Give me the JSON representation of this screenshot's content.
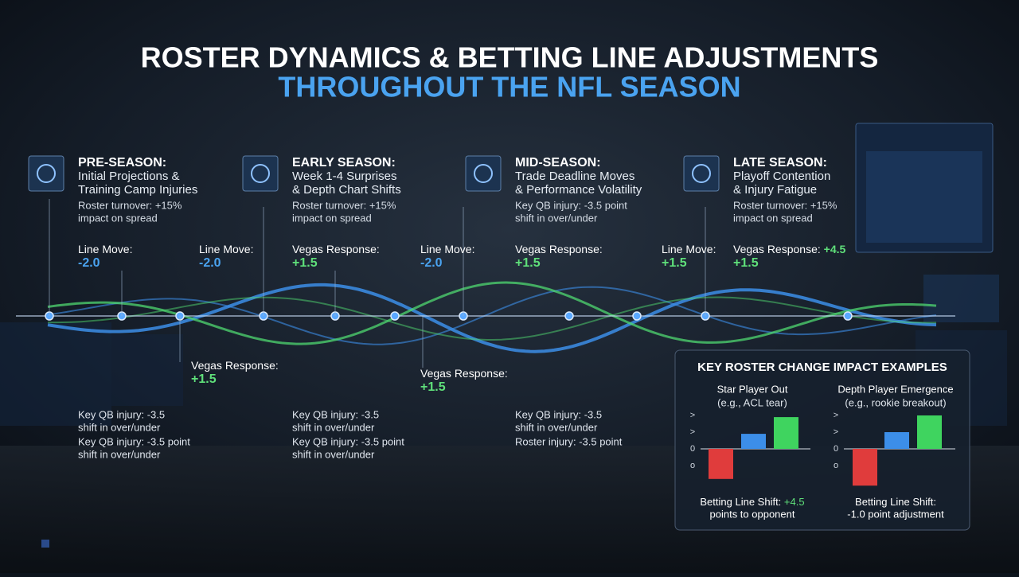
{
  "header": {
    "title": "ROSTER DYNAMICS & BETTING LINE ADJUSTMENTS",
    "subtitle": "THROUGHOUT THE NFL SEASON"
  },
  "phases": [
    {
      "title": "PRE-SEASON:",
      "lines": [
        "Initial Projections &",
        "Training Camp Injuries"
      ],
      "note": [
        "Roster turnover: +15%",
        "impact on spread"
      ]
    },
    {
      "title": "EARLY SEASON:",
      "lines": [
        "Week 1-4 Surprises",
        "& Depth Chart Shifts"
      ],
      "note": [
        "Roster turnover: +15%",
        "impact on spread"
      ]
    },
    {
      "title": "MID-SEASON:",
      "lines": [
        "Trade Deadline Moves",
        "& Performance Volatility"
      ],
      "note": [
        "Key QB injury: -3.5 point",
        "shift in over/under"
      ]
    },
    {
      "title": "LATE SEASON:",
      "lines": [
        "Playoff Contention",
        "& Injury Fatigue"
      ],
      "note": [
        "Roster turnover: +15%",
        "impact on spread"
      ]
    }
  ],
  "annotations": [
    {
      "label": "Line Move:",
      "value": "-2.0",
      "color": "#4aa3f0"
    },
    {
      "label": "Line Move:",
      "value": "-2.0",
      "color": "#4aa3f0"
    },
    {
      "label": "Vegas Response:",
      "value": "+1.5",
      "color": "#5fe07a"
    },
    {
      "label": "Line Move:",
      "value": "-2.0",
      "color": "#4aa3f0"
    },
    {
      "label": "Vegas Response:",
      "value": "+1.5",
      "color": "#5fe07a"
    },
    {
      "label": "Line Move:",
      "value": "+1.5",
      "color": "#5fe07a"
    },
    {
      "label": "Vegas Response:",
      "extra": "+4.5",
      "value": "+1.5",
      "color": "#5fe07a"
    },
    {
      "label": "Vegas Response:",
      "value": "+1.5",
      "color": "#5fe07a"
    },
    {
      "label": "Vegas Response:",
      "value": "+1.5",
      "color": "#5fe07a"
    }
  ],
  "notes": [
    [
      "Key QB injury: -3.5",
      "shift in over/under",
      "Key QB injury: -3.5 point",
      "shift in over/under"
    ],
    [
      "Key QB injury: -3.5",
      "shift in over/under",
      "Key QB injury: -3.5 point",
      "shift in over/under"
    ],
    [
      "Key QB injury: -3.5",
      "shift in over/under",
      "Roster injury: -3.5 point"
    ]
  ],
  "panel_title": "KEY ROSTER CHANGE IMPACT EXAMPLES",
  "chart_data": [
    {
      "type": "bar",
      "title": "Star Player Out",
      "subtitle": "(e.g., ACL tear)",
      "values": [
        -1.8,
        0.9,
        1.9
      ],
      "colors": [
        "#e03c3c",
        "#3c8ee8",
        "#3fd45f"
      ],
      "ylim": [
        -2.5,
        2.5
      ],
      "yticks": [
        {
          "value": 2,
          "label": ">"
        },
        {
          "value": 1,
          "label": ">"
        },
        0,
        {
          "value": -1,
          "label": "o"
        }
      ],
      "footer": [
        "Betting Line Shift:",
        "points to opponent"
      ],
      "footer_highlight": "+4.5"
    },
    {
      "type": "bar",
      "title": "Depth Player Emergence",
      "subtitle": "(e.g., rookie breakout)",
      "values": [
        -2.2,
        1.0,
        2.0
      ],
      "colors": [
        "#e03c3c",
        "#3c8ee8",
        "#3fd45f"
      ],
      "ylim": [
        -2.5,
        2.5
      ],
      "yticks": [
        {
          "value": 2,
          "label": ">"
        },
        {
          "value": 1,
          "label": ">"
        },
        0,
        {
          "value": -1,
          "label": "o"
        }
      ],
      "footer": [
        "Betting Line Shift:",
        "-1.0 point adjustment"
      ]
    }
  ]
}
